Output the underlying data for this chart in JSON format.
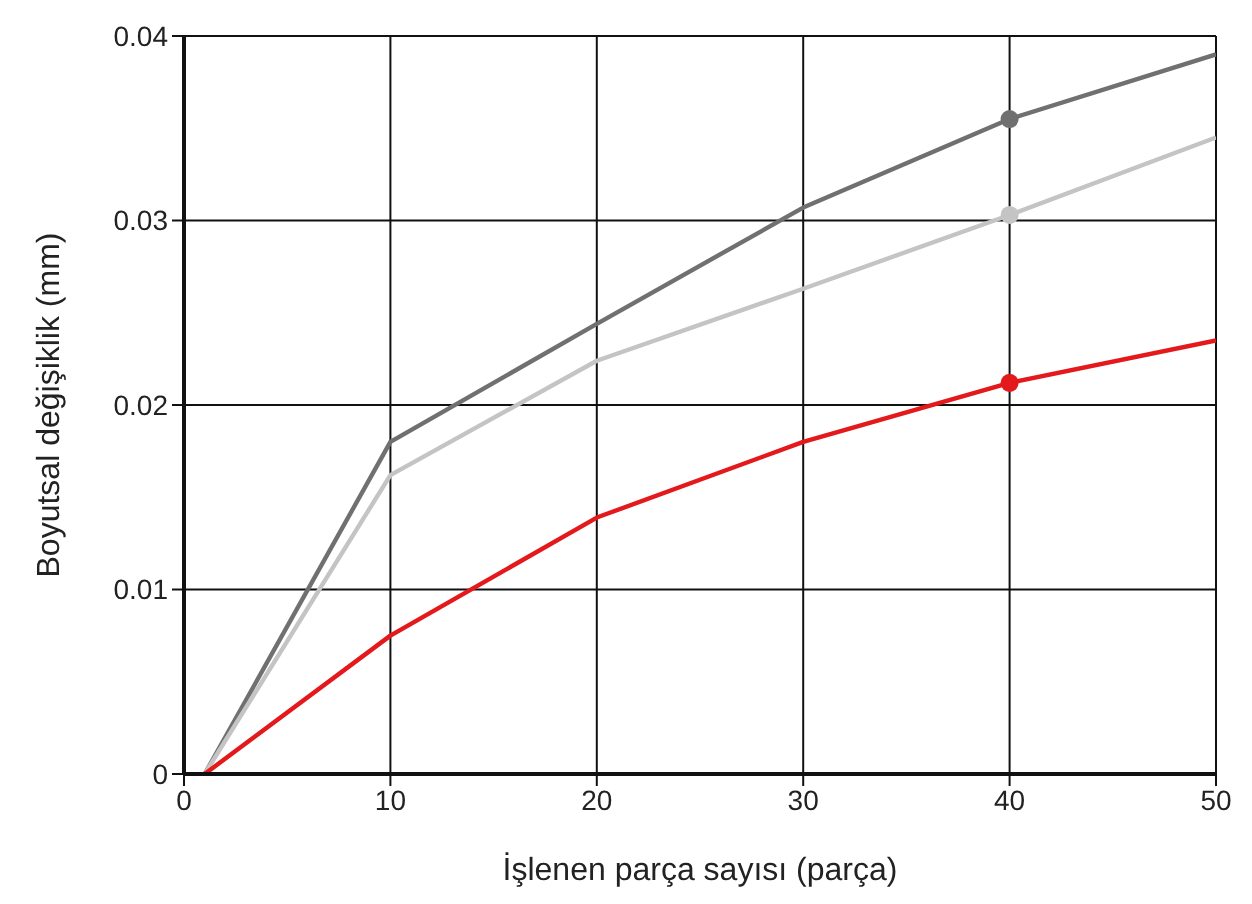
{
  "chart_data": {
    "type": "line",
    "xlabel": "İşlenen parça sayısı (parça)",
    "ylabel": "Boyutsal değişiklik (mm)",
    "xlim": [
      0,
      50
    ],
    "xticks": [
      0,
      10,
      20,
      30,
      40,
      50
    ],
    "ylim": [
      0,
      0.04
    ],
    "yticks": [
      0,
      0.01,
      0.02,
      0.03,
      0.04
    ],
    "grid": true,
    "marker": "none",
    "line_style": "solid",
    "series": [
      {
        "color": "#707070",
        "x": [
          1,
          10,
          20,
          30,
          40,
          50
        ],
        "values": [
          0,
          0.018,
          0.0244,
          0.0307,
          0.0355,
          0.039
        ]
      },
      {
        "color": "#c4c4c4",
        "x": [
          1,
          10,
          20,
          30,
          40,
          50
        ],
        "values": [
          0,
          0.0162,
          0.0224,
          0.0263,
          0.0303,
          0.0345
        ]
      },
      {
        "color": "#e3191c",
        "x": [
          1,
          10,
          20,
          30,
          40,
          50
        ],
        "values": [
          0,
          0.0075,
          0.0139,
          0.018,
          0.0212,
          0.0235
        ]
      },
      {
        "type": "scatter",
        "marker": "circle",
        "color": "#707070",
        "x": [
          40
        ],
        "values": [
          0.0355
        ]
      },
      {
        "type": "scatter",
        "marker": "circle",
        "color": "#c4c4c4",
        "x": [
          40
        ],
        "values": [
          0.0303
        ]
      },
      {
        "type": "scatter",
        "marker": "circle",
        "color": "#e3191c",
        "x": [
          40
        ],
        "values": [
          0.0212
        ]
      }
    ]
  }
}
